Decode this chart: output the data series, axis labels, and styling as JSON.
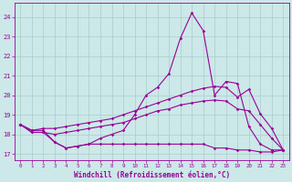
{
  "background_color": "#cce8e8",
  "grid_color": "#aacccc",
  "line_color": "#990099",
  "xlabel": "Windchill (Refroidissement éolien,°C)",
  "ylim": [
    16.7,
    24.7
  ],
  "xlim": [
    -0.5,
    23.5
  ],
  "yticks": [
    17,
    18,
    19,
    20,
    21,
    22,
    23,
    24
  ],
  "xticks": [
    0,
    1,
    2,
    3,
    4,
    5,
    6,
    7,
    8,
    9,
    10,
    11,
    12,
    13,
    14,
    15,
    16,
    17,
    18,
    19,
    20,
    21,
    22,
    23
  ],
  "x": [
    0,
    1,
    2,
    3,
    4,
    5,
    6,
    7,
    8,
    9,
    10,
    11,
    12,
    13,
    14,
    15,
    16,
    17,
    18,
    19,
    20,
    21,
    22,
    23
  ],
  "line_spike": [
    18.5,
    18.2,
    18.2,
    17.6,
    17.3,
    17.4,
    17.5,
    17.8,
    18.0,
    18.2,
    19.0,
    20.0,
    20.4,
    21.1,
    22.9,
    24.2,
    23.3,
    20.0,
    20.7,
    20.6,
    18.4,
    17.5,
    17.2,
    17.2
  ],
  "line_upper": [
    18.5,
    18.2,
    18.3,
    18.3,
    18.4,
    18.5,
    18.6,
    18.7,
    18.8,
    19.0,
    19.2,
    19.4,
    19.6,
    19.8,
    20.0,
    20.2,
    20.35,
    20.45,
    20.4,
    19.9,
    20.3,
    19.05,
    18.3,
    17.2
  ],
  "line_mid": [
    18.5,
    18.1,
    18.1,
    18.0,
    18.1,
    18.2,
    18.3,
    18.4,
    18.5,
    18.6,
    18.8,
    19.0,
    19.2,
    19.3,
    19.5,
    19.6,
    19.7,
    19.75,
    19.7,
    19.3,
    19.2,
    18.5,
    17.8,
    17.2
  ],
  "line_lower": [
    18.5,
    18.1,
    18.1,
    17.6,
    17.3,
    17.4,
    17.5,
    17.5,
    17.5,
    17.5,
    17.5,
    17.5,
    17.5,
    17.5,
    17.5,
    17.5,
    17.5,
    17.3,
    17.3,
    17.2,
    17.2,
    17.1,
    17.1,
    17.2
  ],
  "font_color": "#990099"
}
